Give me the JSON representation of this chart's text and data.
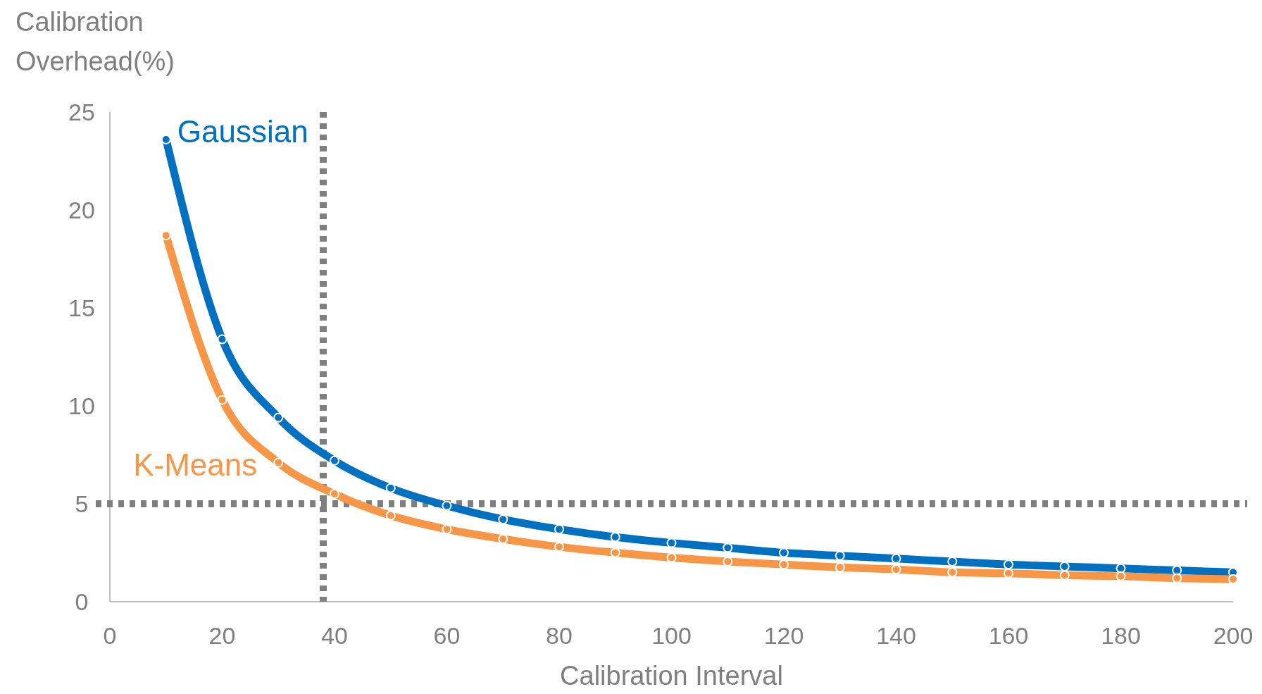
{
  "chart_data": {
    "type": "line",
    "xlabel": "Calibration Interval",
    "ylabel": "Calibration Overhead(%)",
    "x": [
      10,
      20,
      30,
      40,
      50,
      60,
      70,
      80,
      90,
      100,
      110,
      120,
      130,
      140,
      150,
      160,
      170,
      180,
      190,
      200
    ],
    "series": [
      {
        "name": "Gaussian",
        "color": "#0070c0",
        "values": [
          23.6,
          13.4,
          9.4,
          7.2,
          5.8,
          4.9,
          4.2,
          3.7,
          3.3,
          3.0,
          2.75,
          2.5,
          2.35,
          2.2,
          2.05,
          1.9,
          1.8,
          1.7,
          1.6,
          1.5
        ]
      },
      {
        "name": "K-Means",
        "color": "#f79646",
        "values": [
          18.7,
          10.3,
          7.1,
          5.5,
          4.4,
          3.7,
          3.2,
          2.8,
          2.5,
          2.25,
          2.05,
          1.9,
          1.75,
          1.65,
          1.5,
          1.45,
          1.35,
          1.3,
          1.2,
          1.15
        ]
      }
    ],
    "xlim": [
      0,
      200
    ],
    "xticks": [
      0,
      20,
      40,
      60,
      80,
      100,
      120,
      140,
      160,
      180,
      200
    ],
    "ylim": [
      0,
      25
    ],
    "yticks": [
      0,
      5,
      10,
      15,
      20,
      25
    ],
    "ref_lines": [
      {
        "axis": "x",
        "value": 38,
        "color": "#7f7f7f",
        "line_style": "dotted"
      },
      {
        "axis": "y",
        "value": 5,
        "color": "#7f7f7f",
        "line_style": "dotted"
      }
    ],
    "marker": "circle",
    "line_style": "solid"
  }
}
